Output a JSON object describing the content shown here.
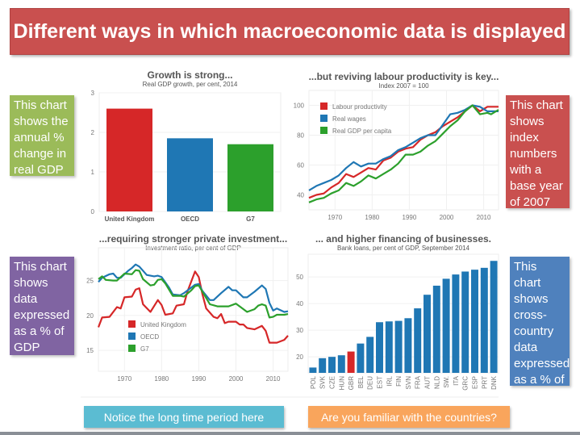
{
  "title": "Different ways in which macroeconomic data is displayed",
  "notes": {
    "gdp": "This chart shows the annual % change in real GDP",
    "index": "This chart shows index numbers with a base year of 2007",
    "investment": "This chart shows data expressed as a % of GDP",
    "loans": "This chart shows cross-country data expressed as a % of GDP"
  },
  "bottom": {
    "left": "Notice the long time period here",
    "right": "Are you familiar with the countries?"
  },
  "colors": {
    "banner": "#c9504f",
    "green_note": "#9bbb59",
    "red_note": "#c9504f",
    "purple_note": "#8064a2",
    "blue_note": "#4f81bd",
    "cyan": "#4bacc6",
    "orange": "#f79646",
    "uk": "#d62728",
    "oecd": "#1f77b4",
    "g7": "#2ca02c"
  },
  "chart_data": [
    {
      "type": "bar",
      "title": "Growth is strong...",
      "subtitle": "Real GDP growth, per cent, 2014",
      "categories": [
        "United Kingdom",
        "OECD",
        "G7"
      ],
      "values": [
        2.6,
        1.85,
        1.7
      ],
      "bar_colors": [
        "#d62728",
        "#1f77b4",
        "#2ca02c"
      ],
      "ylim": [
        0,
        3
      ],
      "yticks": [
        "0",
        "1",
        "2",
        "3"
      ]
    },
    {
      "type": "line",
      "title": "...but reviving labour productivity is key...",
      "subtitle": "Index 2007 = 100",
      "ylim": [
        30,
        110
      ],
      "yticks": [
        "40",
        "60",
        "80",
        "100"
      ],
      "xlim": [
        1963,
        2014
      ],
      "xticks": [
        "1970",
        "1980",
        "1990",
        "2000",
        "2010"
      ],
      "legend": "top-left",
      "series": [
        {
          "name": "Labour productivity",
          "color": "#d62728",
          "x": [
            1963,
            1965,
            1967,
            1969,
            1971,
            1973,
            1975,
            1977,
            1979,
            1981,
            1983,
            1985,
            1987,
            1989,
            1991,
            1993,
            1995,
            1997,
            1999,
            2001,
            2003,
            2005,
            2007,
            2009,
            2011,
            2014
          ],
          "y": [
            38,
            40,
            41,
            45,
            48,
            54,
            52,
            55,
            58,
            57,
            63,
            65,
            69,
            71,
            72,
            77,
            80,
            82,
            86,
            89,
            92,
            96,
            100,
            96,
            99,
            99
          ]
        },
        {
          "name": "Real wages",
          "color": "#1f77b4",
          "x": [
            1963,
            1965,
            1967,
            1969,
            1971,
            1973,
            1975,
            1977,
            1979,
            1981,
            1983,
            1985,
            1987,
            1989,
            1991,
            1993,
            1995,
            1997,
            1999,
            2001,
            2003,
            2005,
            2007,
            2009,
            2011,
            2014
          ],
          "y": [
            43,
            46,
            48,
            50,
            53,
            58,
            62,
            59,
            61,
            61,
            64,
            66,
            70,
            72,
            75,
            78,
            80,
            80,
            87,
            94,
            95,
            97,
            100,
            99,
            96,
            96
          ]
        },
        {
          "name": "Real GDP per capita",
          "color": "#2ca02c",
          "x": [
            1963,
            1965,
            1967,
            1969,
            1971,
            1973,
            1975,
            1977,
            1979,
            1981,
            1983,
            1985,
            1987,
            1989,
            1991,
            1993,
            1995,
            1997,
            1999,
            2001,
            2003,
            2005,
            2007,
            2009,
            2011,
            2012,
            2014
          ],
          "y": [
            35,
            37,
            38,
            41,
            43,
            48,
            46,
            49,
            53,
            51,
            54,
            57,
            61,
            67,
            67,
            69,
            73,
            76,
            81,
            86,
            90,
            96,
            100,
            94,
            95,
            94,
            97
          ]
        }
      ]
    },
    {
      "type": "line",
      "title": "...requiring stronger private investment...",
      "subtitle": "Investment ratio, per cent of GDP",
      "ylim": [
        12,
        29.7
      ],
      "yticks": [
        "15",
        "20",
        "25"
      ],
      "xlim": [
        1963,
        2014
      ],
      "xticks": [
        "1970",
        "1980",
        "1990",
        "2000",
        "2010"
      ],
      "legend": "bottom-left",
      "series": [
        {
          "name": "United Kingdom",
          "color": "#d62728",
          "x": [
            1963,
            1964,
            1966,
            1968,
            1969,
            1970,
            1972,
            1973,
            1974,
            1975,
            1977,
            1979,
            1980,
            1981,
            1983,
            1984,
            1986,
            1987,
            1989,
            1990,
            1991,
            1992,
            1994,
            1995,
            1996,
            1997,
            1998,
            2000,
            2001,
            2002,
            2003,
            2005,
            2007,
            2008,
            2009,
            2011,
            2013,
            2014
          ],
          "y": [
            18.3,
            19.7,
            19.8,
            21.2,
            21,
            22.6,
            22.7,
            23.7,
            23.9,
            21.6,
            20.5,
            22.2,
            21.5,
            20.1,
            20.3,
            21.4,
            21.6,
            23.5,
            26.3,
            25.5,
            23,
            21,
            19.8,
            19.6,
            20.2,
            18.9,
            19.1,
            19.1,
            18.7,
            18.7,
            18.2,
            18,
            18.5,
            17.8,
            16.1,
            16.1,
            16.5,
            17.1
          ]
        },
        {
          "name": "OECD",
          "color": "#1f77b4",
          "x": [
            1963,
            1964,
            1966,
            1967,
            1968,
            1969,
            1971,
            1972,
            1973,
            1974,
            1976,
            1978,
            1979,
            1980,
            1982,
            1983,
            1985,
            1986,
            1988,
            1989,
            1990,
            1991,
            1993,
            1994,
            1996,
            1998,
            1999,
            2000,
            2002,
            2003,
            2005,
            2007,
            2008,
            2009,
            2010,
            2011,
            2013,
            2014
          ],
          "y": [
            24.8,
            25.4,
            25.9,
            26,
            25.4,
            25.4,
            26.4,
            26.8,
            27.3,
            27,
            25.8,
            25.6,
            25.7,
            25.5,
            24,
            23,
            22.9,
            23.2,
            24,
            24.4,
            24.5,
            23.5,
            22.2,
            22.2,
            23.2,
            24.1,
            23.6,
            23.6,
            22.6,
            22.6,
            23.4,
            24.3,
            23.8,
            21.8,
            20.7,
            21,
            20.5,
            20.6
          ]
        },
        {
          "name": "G7",
          "color": "#2ca02c",
          "x": [
            1963,
            1964,
            1965,
            1967,
            1968,
            1970,
            1972,
            1973,
            1974,
            1975,
            1977,
            1978,
            1979,
            1980,
            1981,
            1983,
            1985,
            1986,
            1988,
            1989,
            1990,
            1991,
            1993,
            1995,
            1998,
            2000,
            2001,
            2003,
            2005,
            2006,
            2007,
            2008,
            2009,
            2010,
            2011,
            2013,
            2014
          ],
          "y": [
            25.2,
            25.6,
            25.1,
            25,
            25,
            26,
            25.9,
            26.5,
            26.4,
            25.2,
            24.3,
            24.4,
            25.1,
            25.2,
            24.6,
            22.8,
            22.8,
            22.7,
            23.6,
            24.2,
            24.3,
            23.4,
            21.6,
            21.3,
            21.3,
            21.7,
            21.3,
            20.5,
            20.9,
            21.4,
            21.6,
            21.4,
            19.7,
            19.8,
            20.1,
            20.1,
            20.2
          ]
        }
      ]
    },
    {
      "type": "bar",
      "title": "... and higher financing of businesses.",
      "subtitle": "Bank loans, per cent of GDP, September 2014",
      "categories": [
        "POL",
        "SVK",
        "CZE",
        "HUN",
        "GBR",
        "BEL",
        "DEU",
        "EST",
        "IRL",
        "FIN",
        "SVN",
        "FRA",
        "AUT",
        "NLD",
        "SW.",
        "ITA",
        "GRC",
        "ESP",
        "PRT",
        "DNK"
      ],
      "values": [
        16,
        19.5,
        20,
        20.6,
        22,
        25,
        27.5,
        33,
        33.3,
        33.5,
        34.5,
        38.2,
        43.3,
        46.7,
        49.3,
        50.9,
        52,
        52.7,
        53.4,
        56
      ],
      "highlight": "GBR",
      "ylim": [
        14,
        58.5
      ],
      "yticks": [
        "20",
        "30",
        "40",
        "50"
      ]
    }
  ]
}
